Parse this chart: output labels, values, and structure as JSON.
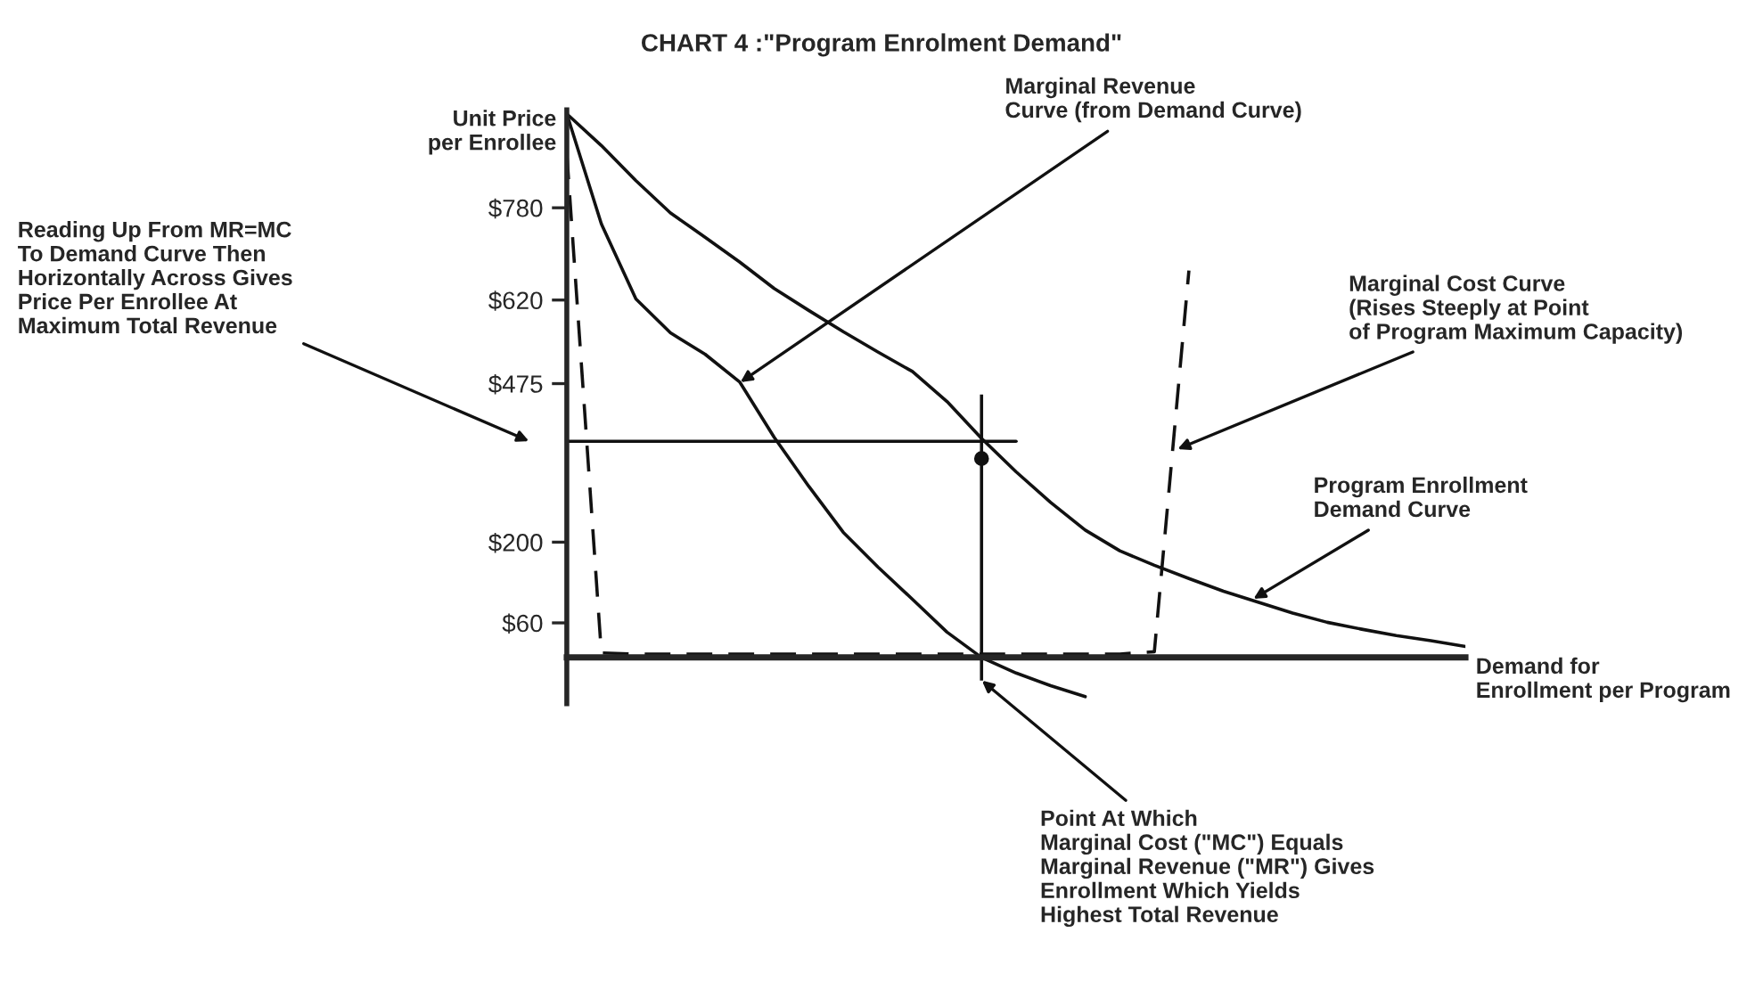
{
  "chart_data": {
    "type": "line",
    "title": "CHART 4 :\"Program Enrolment Demand\"",
    "ylabel": "Unit Price\nper Enrollee",
    "xlabel": "Demand for\nEnrollment per Program",
    "categories": [
      null,
      null,
      null,
      null,
      null,
      null,
      null,
      null,
      null,
      null,
      null,
      null,
      null,
      null,
      null,
      null,
      null,
      null,
      null,
      null,
      null,
      null,
      null,
      null,
      null,
      null,
      null
    ],
    "ylim": [
      -80,
      950
    ],
    "yticks": [
      {
        "value": 60,
        "label": "$60"
      },
      {
        "value": 200,
        "label": "$200"
      },
      {
        "value": 475,
        "label": "$475"
      },
      {
        "value": 620,
        "label": "$620"
      },
      {
        "value": 780,
        "label": "$780"
      }
    ],
    "grid": false,
    "legend": false,
    "marker": "none",
    "series": [
      {
        "color": "#111111",
        "line_style": "solid",
        "values": [
          943,
          888,
          827,
          771,
          729,
          686,
          640,
          602,
          565,
          530,
          496,
          444,
          380,
          322,
          269,
          221,
          185,
          160,
          137,
          115,
          96,
          77,
          61,
          49,
          38,
          29,
          19
        ]
      },
      {
        "color": "#111111",
        "line_style": "solid",
        "values": [
          943,
          752,
          622,
          563,
          526,
          478,
          382,
          297,
          217,
          157,
          101,
          44,
          0,
          -27,
          -49,
          -68,
          null,
          null,
          null,
          null,
          null,
          null,
          null,
          null,
          null,
          null,
          null
        ]
      },
      {
        "color": "#111111",
        "line_style": "dashed",
        "values": [
          874,
          8,
          6,
          6,
          6,
          6,
          6,
          6,
          6,
          6,
          6,
          6,
          6,
          6,
          6,
          6,
          6,
          10,
          671,
          null,
          null,
          null,
          null,
          null,
          null,
          null,
          null
        ]
      },
      {
        "color": "#111111",
        "line_style": "solid",
        "values": [
          375,
          375,
          375,
          375,
          375,
          375,
          375,
          375,
          375,
          375,
          375,
          375,
          375,
          375,
          null,
          null,
          null,
          null,
          null,
          null,
          null,
          null,
          null,
          null,
          null,
          null,
          null
        ]
      },
      {
        "color": "#111111",
        "line_style": "solid",
        "marker": "circle",
        "values": [
          null,
          null,
          null,
          null,
          null,
          null,
          null,
          null,
          null,
          null,
          null,
          null,
          345,
          null,
          null,
          null,
          null,
          null,
          null,
          null,
          null,
          null,
          null,
          null,
          null,
          null,
          null
        ],
        "errors": [
          null,
          null,
          null,
          null,
          null,
          null,
          null,
          null,
          null,
          null,
          null,
          null,
          [
            -40,
            456
          ],
          null,
          null,
          null,
          null,
          null,
          null,
          null,
          null,
          null,
          null,
          null,
          null,
          null,
          null
        ]
      }
    ],
    "annotations": [
      "Marginal Revenue\nCurve (from Demand Curve)",
      "Reading Up From MR=MC\nTo Demand Curve Then\nHorizontally Across Gives\nPrice Per Enrollee At\nMaximum Total Revenue",
      "Marginal Cost Curve\n(Rises Steeply at Point\nof Program Maximum Capacity)",
      "Program Enrollment\nDemand Curve",
      "Point At Which\nMarginal Cost (\"MC\") Equals\nMarginal Revenue (\"MR\") Gives\nEnrollment Which Yields\nHighest Total Revenue"
    ]
  }
}
